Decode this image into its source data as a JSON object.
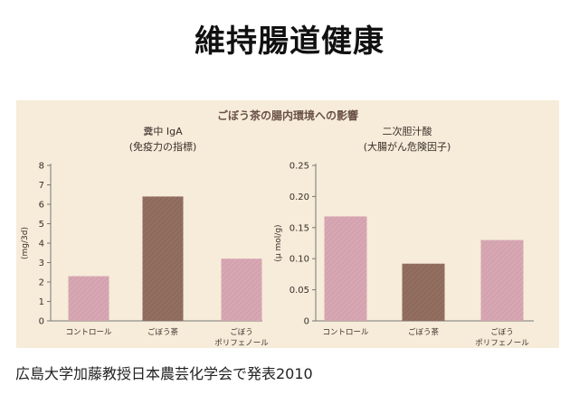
{
  "page": {
    "title": "維持腸道健康",
    "footer": "広島大学加藤教授日本農芸化学会で発表2010"
  },
  "panel": {
    "heading": "ごぼう茶の腸内環境への影響"
  },
  "colors": {
    "panel_bg": "#f6ecd9",
    "bar_pink": "#d4a2af",
    "bar_brown": "#8d6a5c",
    "axis": "#777777"
  },
  "chart_data": [
    {
      "type": "bar",
      "title": "糞中 IgA",
      "subtitle": "(免疫力の指標)",
      "ylabel": "(mg/3d)",
      "ylim": [
        0,
        8
      ],
      "yticks": [
        "0",
        "1",
        "2",
        "3",
        "4",
        "5",
        "6",
        "7",
        "8"
      ],
      "categories": [
        [
          "コントロール"
        ],
        [
          "ごぼう茶"
        ],
        [
          "ごぼう",
          "ポリフェノール"
        ]
      ],
      "values": [
        2.3,
        6.4,
        3.2
      ],
      "bar_colors": [
        "#d4a2af",
        "#8d6a5c",
        "#d4a2af"
      ]
    },
    {
      "type": "bar",
      "title": "二次胆汁酸",
      "subtitle": "(大腸がん危険因子)",
      "ylabel": "(μ mol/g)",
      "ylim": [
        0,
        0.25
      ],
      "yticks": [
        "0",
        "0.05",
        "0.10",
        "0.15",
        "0.20",
        "0.25"
      ],
      "categories": [
        [
          "コントロール"
        ],
        [
          "ごぼう茶"
        ],
        [
          "ごぼう",
          "ポリフェノール"
        ]
      ],
      "values": [
        0.168,
        0.092,
        0.13
      ],
      "bar_colors": [
        "#d4a2af",
        "#8d6a5c",
        "#d4a2af"
      ]
    }
  ]
}
